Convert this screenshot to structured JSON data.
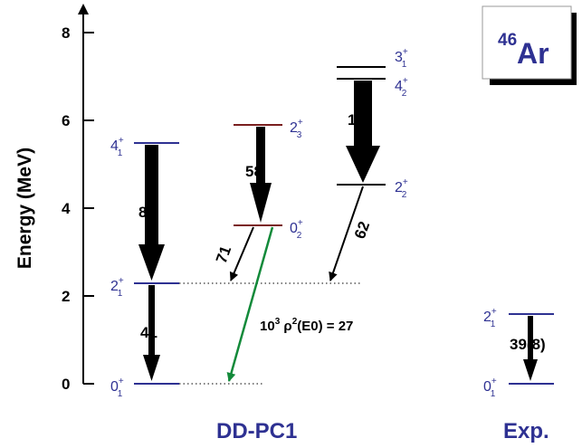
{
  "axis": {
    "title": "Energy (MeV)",
    "ticks": [
      "0",
      "2",
      "4",
      "6",
      "8"
    ]
  },
  "nucleus": {
    "mass": "46",
    "symbol": "Ar"
  },
  "footer": {
    "left": "DD-PC1",
    "right": "Exp."
  },
  "colors": {
    "blue": "#2e3192",
    "dark_red": "#7a1f1f",
    "green": "#138a3a",
    "black": "#000000"
  },
  "ddpc1": {
    "levels": [
      {
        "J": "0",
        "sub": "1",
        "energy": 0.0
      },
      {
        "J": "2",
        "sub": "1",
        "energy": 2.3
      },
      {
        "J": "4",
        "sub": "1",
        "energy": 5.5
      },
      {
        "J": "0",
        "sub": "2",
        "energy": 3.6
      },
      {
        "J": "2",
        "sub": "3",
        "energy": 5.9
      },
      {
        "J": "2",
        "sub": "2",
        "energy": 4.55
      },
      {
        "J": "4",
        "sub": "2",
        "energy": 6.98
      },
      {
        "J": "3",
        "sub": "1",
        "energy": 7.2
      }
    ],
    "transitions": [
      {
        "from": "4+1",
        "to": "2+1",
        "value": "82"
      },
      {
        "from": "2+1",
        "to": "0+1",
        "value": "41"
      },
      {
        "from": "2+3",
        "to": "0+2",
        "value": "58"
      },
      {
        "from": "0+2",
        "to": "2+1",
        "value": "71"
      },
      {
        "from": "4+2",
        "to": "2+2",
        "value": "115"
      },
      {
        "from": "2+2",
        "to": "2+1",
        "value": "62"
      }
    ],
    "e0": {
      "label_prefix": "10",
      "label_sup": "3",
      "label_rho": " ρ",
      "label_sup2": "2",
      "label_rest": "(E0) = 27"
    }
  },
  "exp": {
    "levels": [
      {
        "J": "0",
        "sub": "1",
        "energy": 0.0
      },
      {
        "J": "2",
        "sub": "1",
        "energy": 1.58
      }
    ],
    "transition": {
      "value": "39(8)"
    }
  }
}
